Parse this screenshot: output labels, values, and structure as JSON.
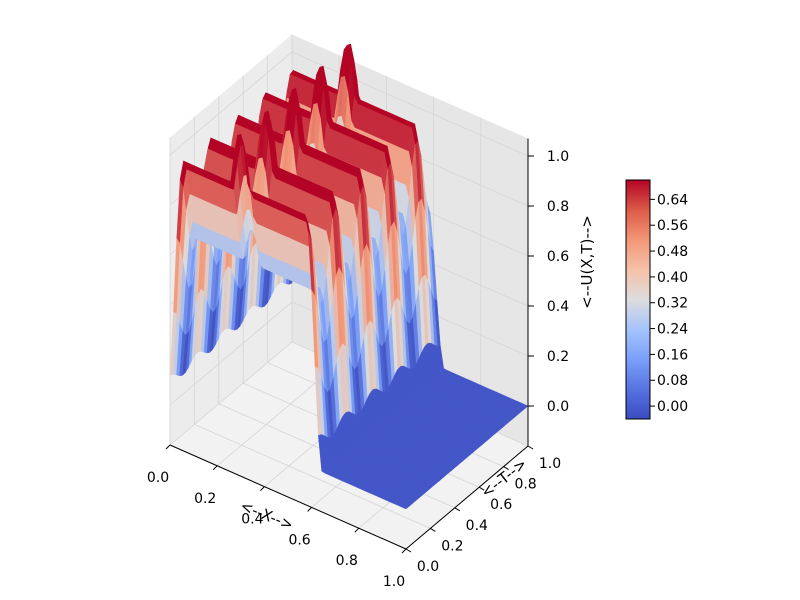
{
  "chart_data": {
    "type": "surface3d",
    "title": "",
    "xlabel": "<--X-->",
    "ylabel": "<--T-->",
    "zlabel": "<--U(X,T)-->",
    "x_ticks": [
      "0.0",
      "0.2",
      "0.4",
      "0.6",
      "0.8",
      "1.0"
    ],
    "y_ticks": [
      "0.0",
      "0.2",
      "0.4",
      "0.6",
      "0.8",
      "1.0"
    ],
    "z_ticks": [
      "0.0",
      "0.2",
      "0.4",
      "0.6",
      "0.8",
      "1.0"
    ],
    "xlim": [
      0,
      1
    ],
    "ylim": [
      0,
      1
    ],
    "zlim": [
      0,
      1
    ],
    "grid": true,
    "colormap": "coolwarm",
    "colormap_low": "#3b4cc0",
    "colormap_mid": "#dddddd",
    "colormap_high": "#b40426",
    "surface": {
      "description_of_shape": "two raised slabs with oscillating crest",
      "pulse_1": {
        "x_start": 0.29,
        "x_end": 0.61,
        "height": 1.0
      },
      "pulse_2": {
        "x_start": 0.02,
        "x_end": 0.3,
        "height": 1.0
      },
      "baseline": 0.0,
      "oscillation_periods_across_t": 4.5
    },
    "colorbar": {
      "ticks": [
        "0.00",
        "0.08",
        "0.16",
        "0.24",
        "0.32",
        "0.40",
        "0.48",
        "0.56",
        "0.64"
      ],
      "min": -0.04,
      "max": 0.7
    }
  }
}
